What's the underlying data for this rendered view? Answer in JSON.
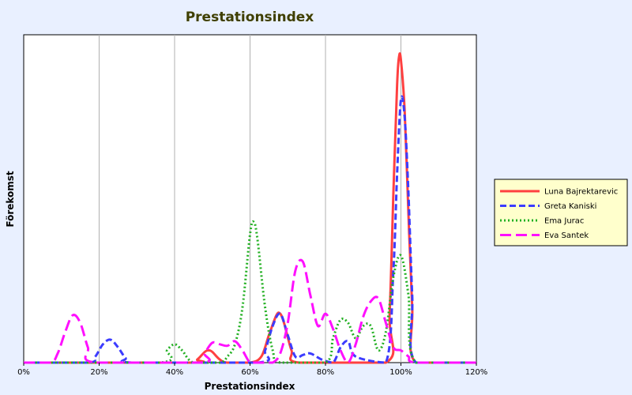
{
  "chart_data": {
    "type": "line",
    "title": "Prestationsindex",
    "xlabel": "Prestationsindex",
    "ylabel": "Förekomst",
    "xlim": [
      0,
      1.2
    ],
    "ylim": [
      0,
      1.0
    ],
    "x_ticks": [
      0,
      0.2,
      0.4,
      0.6,
      0.8,
      1.0,
      1.2
    ],
    "x_tick_labels": [
      "0%",
      "20%",
      "40%",
      "60%",
      "80%",
      "100%",
      "120%"
    ],
    "y_ticks_shown": false,
    "grid": "vertical",
    "legend_position": "right",
    "series": [
      {
        "name": "Luna Bajrektarevic",
        "color": "#ff4040",
        "dash": "solid",
        "x": [
          0.0,
          0.44,
          0.46,
          0.48,
          0.49,
          0.5,
          0.52,
          0.54,
          0.6,
          0.63,
          0.65,
          0.67,
          0.68,
          0.69,
          0.71,
          0.73,
          0.96,
          0.97,
          0.98,
          0.99,
          0.995,
          1.0,
          1.01,
          1.02,
          1.03,
          1.04,
          1.2
        ],
        "y": [
          0.0,
          0.0,
          0.01,
          0.035,
          0.04,
          0.035,
          0.01,
          0.0,
          0.0,
          0.02,
          0.09,
          0.155,
          0.16,
          0.13,
          0.04,
          0.0,
          0.0,
          0.16,
          0.55,
          0.91,
          1.0,
          0.99,
          0.82,
          0.48,
          0.18,
          0.0,
          0.0
        ]
      },
      {
        "name": "Greta Kaniski",
        "color": "#3c3cff",
        "dash": "8,4",
        "x": [
          0.0,
          0.17,
          0.19,
          0.21,
          0.23,
          0.25,
          0.27,
          0.29,
          0.62,
          0.64,
          0.66,
          0.68,
          0.7,
          0.72,
          0.74,
          0.76,
          0.79,
          0.82,
          0.84,
          0.86,
          0.88,
          0.96,
          0.98,
          0.99,
          1.0,
          1.01,
          1.02,
          1.03,
          1.04,
          1.2
        ],
        "y": [
          0.0,
          0.0,
          0.02,
          0.06,
          0.075,
          0.05,
          0.015,
          0.0,
          0.0,
          0.04,
          0.12,
          0.16,
          0.09,
          0.02,
          0.025,
          0.03,
          0.01,
          0.0,
          0.05,
          0.07,
          0.02,
          0.0,
          0.3,
          0.62,
          0.86,
          0.8,
          0.55,
          0.22,
          0.0,
          0.0
        ]
      },
      {
        "name": "Ema Jurac",
        "color": "#22b022",
        "dash": "2,3",
        "x": [
          0.0,
          0.36,
          0.38,
          0.4,
          0.42,
          0.45,
          0.52,
          0.54,
          0.56,
          0.58,
          0.6,
          0.61,
          0.62,
          0.64,
          0.66,
          0.68,
          0.8,
          0.82,
          0.84,
          0.86,
          0.88,
          0.9,
          0.92,
          0.94,
          0.96,
          0.98,
          1.0,
          1.02,
          1.04,
          1.2
        ],
        "y": [
          0.0,
          0.0,
          0.04,
          0.06,
          0.04,
          0.0,
          0.0,
          0.02,
          0.06,
          0.18,
          0.42,
          0.46,
          0.4,
          0.18,
          0.04,
          0.0,
          0.0,
          0.08,
          0.14,
          0.13,
          0.08,
          0.12,
          0.12,
          0.04,
          0.1,
          0.28,
          0.35,
          0.22,
          0.0,
          0.0
        ]
      },
      {
        "name": "Eva Santek",
        "color": "#ff10ff",
        "dash": "14,6",
        "x": [
          0.0,
          0.07,
          0.09,
          0.11,
          0.13,
          0.15,
          0.17,
          0.19,
          0.47,
          0.48,
          0.5,
          0.52,
          0.54,
          0.56,
          0.58,
          0.6,
          0.62,
          0.64,
          0.66,
          0.68,
          0.7,
          0.72,
          0.74,
          0.76,
          0.78,
          0.8,
          0.82,
          0.84,
          0.86,
          0.88,
          0.9,
          0.92,
          0.94,
          0.96,
          0.98,
          1.0,
          1.02,
          1.04,
          1.2
        ],
        "y": [
          0.0,
          0.0,
          0.03,
          0.1,
          0.155,
          0.13,
          0.05,
          0.0,
          0.0,
          0.03,
          0.065,
          0.06,
          0.055,
          0.07,
          0.04,
          0.0,
          0.0,
          0.0,
          0.0,
          0.03,
          0.13,
          0.3,
          0.33,
          0.22,
          0.12,
          0.16,
          0.11,
          0.04,
          0.0,
          0.06,
          0.15,
          0.2,
          0.21,
          0.13,
          0.05,
          0.04,
          0.02,
          0.0,
          0.0
        ]
      }
    ]
  }
}
